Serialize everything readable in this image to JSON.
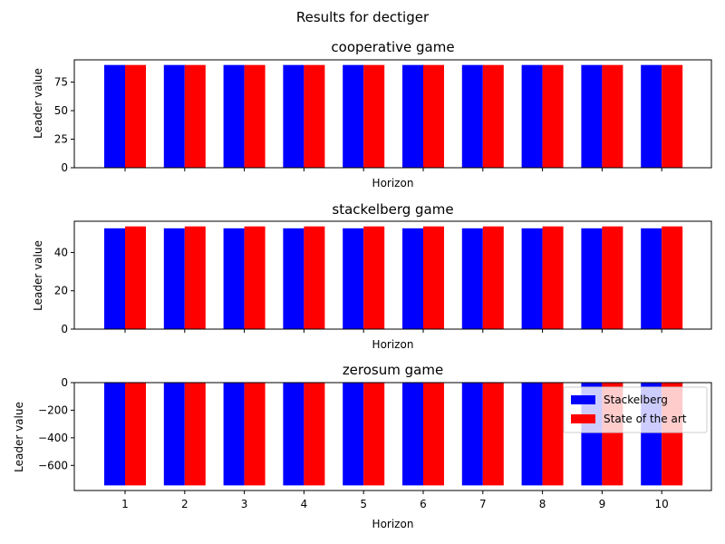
{
  "figure": {
    "suptitle": "Results for dectiger"
  },
  "chart_data": [
    {
      "type": "bar",
      "title": "cooperative game",
      "xlabel": "Horizon",
      "ylabel": "Leader value",
      "categories": [
        1,
        2,
        3,
        4,
        5,
        6,
        7,
        8,
        9,
        10
      ],
      "series": [
        {
          "name": "Stackelberg",
          "color": "#0000ff",
          "values": [
            90,
            90,
            90,
            90,
            90,
            90,
            90,
            90,
            90,
            90
          ]
        },
        {
          "name": "State of the art",
          "color": "#ff0000",
          "values": [
            90,
            90,
            90,
            90,
            90,
            90,
            90,
            90,
            90,
            90
          ]
        }
      ],
      "ylim": [
        0,
        94.5
      ],
      "yticks": [
        0,
        25,
        50,
        75
      ],
      "show_xticklabels": false,
      "legend": "none"
    },
    {
      "type": "bar",
      "title": "stackelberg game",
      "xlabel": "Horizon",
      "ylabel": "Leader value",
      "categories": [
        1,
        2,
        3,
        4,
        5,
        6,
        7,
        8,
        9,
        10
      ],
      "series": [
        {
          "name": "Stackelberg",
          "color": "#0000ff",
          "values": [
            52.6,
            52.6,
            52.6,
            52.6,
            52.6,
            52.6,
            52.6,
            52.6,
            52.6,
            52.6
          ]
        },
        {
          "name": "State of the art",
          "color": "#ff0000",
          "values": [
            53.6,
            53.6,
            53.6,
            53.6,
            53.6,
            53.6,
            53.6,
            53.6,
            53.6,
            53.6
          ]
        }
      ],
      "ylim": [
        0,
        56.3
      ],
      "yticks": [
        0,
        20,
        40
      ],
      "show_xticklabels": false,
      "legend": "none"
    },
    {
      "type": "bar",
      "title": "zerosum game",
      "xlabel": "Horizon",
      "ylabel": "Leader value",
      "categories": [
        1,
        2,
        3,
        4,
        5,
        6,
        7,
        8,
        9,
        10
      ],
      "series": [
        {
          "name": "Stackelberg",
          "color": "#0000ff",
          "values": [
            -745,
            -745,
            -745,
            -745,
            -745,
            -745,
            -745,
            -745,
            -745,
            -745
          ]
        },
        {
          "name": "State of the art",
          "color": "#ff0000",
          "values": [
            -745,
            -745,
            -745,
            -745,
            -745,
            -745,
            -745,
            -745,
            -745,
            -745
          ]
        }
      ],
      "ylim": [
        -782,
        0
      ],
      "yticks": [
        -600,
        -400,
        -200,
        0
      ],
      "show_xticklabels": true,
      "legend": "upper-right"
    }
  ]
}
